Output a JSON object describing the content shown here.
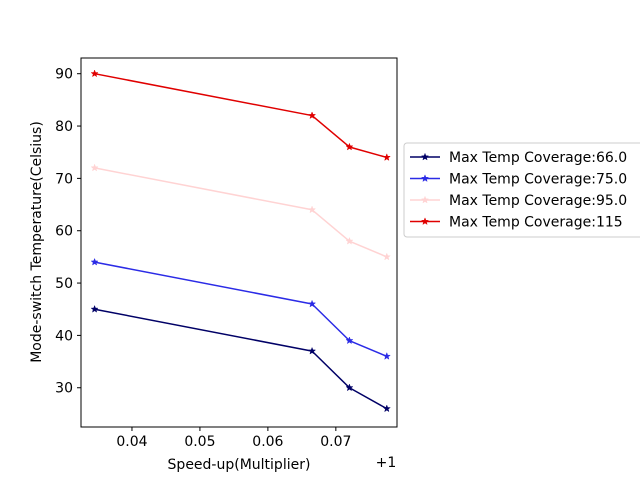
{
  "chart_data": {
    "type": "line",
    "xlabel": "Speed-up(Multiplier)",
    "ylabel": "Mode-switch Temperature(Celsius)",
    "x_offset_label": "+1",
    "xlim": [
      0.0325,
      0.079
    ],
    "ylim": [
      22.5,
      93
    ],
    "xticks": [
      0.04,
      0.05,
      0.06,
      0.07
    ],
    "xtick_labels": [
      "0.04",
      "0.05",
      "0.06",
      "0.07"
    ],
    "yticks": [
      30,
      40,
      50,
      60,
      70,
      80,
      90
    ],
    "ytick_labels": [
      "30",
      "40",
      "50",
      "60",
      "70",
      "80",
      "90"
    ],
    "x": [
      0.0345,
      0.0665,
      0.072,
      0.0775
    ],
    "grid": false,
    "legend_position": "right, outside plot",
    "series": [
      {
        "name": "Max Temp Coverage:66.0",
        "color": "#000066",
        "values": [
          45,
          37,
          30,
          26
        ]
      },
      {
        "name": "Max Temp Coverage:75.0",
        "color": "#2b2be6",
        "values": [
          54,
          46,
          39,
          36
        ]
      },
      {
        "name": "Max Temp Coverage:95.0",
        "color": "#ffd3d3",
        "values": [
          72,
          64,
          58,
          55
        ]
      },
      {
        "name": "Max Temp Coverage:115",
        "color": "#e00000",
        "values": [
          90,
          82,
          76,
          74
        ]
      }
    ]
  }
}
